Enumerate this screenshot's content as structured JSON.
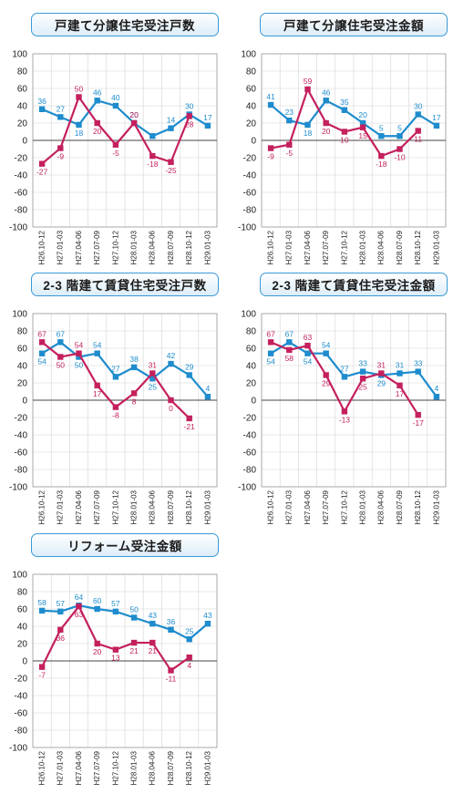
{
  "colors": {
    "series1": "#1e8ccd",
    "series2": "#c4205e",
    "grid": "#d4d4d4",
    "title_border": "#3a9ad6"
  },
  "chart_data": [
    {
      "type": "line",
      "title": "戸建て分譲住宅受注戸数",
      "categories": [
        "H26.10-12",
        "H27.01-03",
        "H27.04-06",
        "H27.07-09",
        "H27.10-12",
        "H28.01-03",
        "H28.04-06",
        "H28.07-09",
        "H28.10-12",
        "H29.01-03"
      ],
      "ylim": [
        -100,
        100
      ],
      "yticks": [
        100,
        80,
        60,
        40,
        20,
        0,
        -20,
        -40,
        -60,
        -80,
        -100
      ],
      "grid": true,
      "series": [
        {
          "values": [
            36,
            27,
            18,
            46,
            40,
            20,
            5,
            14,
            30,
            17
          ],
          "labels": [
            "36",
            "27",
            "18",
            "46",
            "40",
            "20",
            "",
            "14",
            "30",
            "17"
          ]
        },
        {
          "values": [
            -27,
            -9,
            50,
            20,
            -5,
            20,
            -18,
            -25,
            28,
            null
          ],
          "labels": [
            "-27",
            "-9",
            "50",
            "20",
            "-5",
            "20",
            "-18",
            "-25",
            "28",
            ""
          ]
        }
      ]
    },
    {
      "type": "line",
      "title": "戸建て分譲住宅受注金額",
      "categories": [
        "H26.10-12",
        "H27.01-03",
        "H27.04-06",
        "H27.07-09",
        "H27.10-12",
        "H28.01-03",
        "H28.04-06",
        "H28.07-09",
        "H28.10-12",
        "H29.01-03"
      ],
      "ylim": [
        -100,
        100
      ],
      "yticks": [
        100,
        80,
        60,
        40,
        20,
        0,
        -20,
        -40,
        -60,
        -80,
        -100
      ],
      "grid": true,
      "series": [
        {
          "values": [
            41,
            23,
            18,
            46,
            35,
            20,
            5,
            5,
            30,
            17
          ],
          "labels": [
            "41",
            "23",
            "18",
            "46",
            "35",
            "20",
            "5",
            "5",
            "30",
            "17"
          ]
        },
        {
          "values": [
            -9,
            -5,
            59,
            20,
            10,
            15,
            -18,
            -10,
            11,
            null
          ],
          "labels": [
            "-9",
            "-5",
            "59",
            "20",
            "10",
            "15",
            "-18",
            "-10",
            "11",
            ""
          ]
        }
      ]
    },
    {
      "type": "line",
      "title": "2-3 階建て賃貸住宅受注戸数",
      "categories": [
        "H26.10-12",
        "H27.01-03",
        "H27.04-06",
        "H27.07-09",
        "H27.10-12",
        "H28.01-03",
        "H28.04-06",
        "H28.07-09",
        "H28.10-12",
        "H29.01-03"
      ],
      "ylim": [
        -100,
        100
      ],
      "yticks": [
        100,
        80,
        60,
        40,
        20,
        0,
        -20,
        -40,
        -60,
        -80,
        -100
      ],
      "grid": true,
      "series": [
        {
          "values": [
            54,
            67,
            50,
            54,
            27,
            38,
            25,
            42,
            29,
            4
          ],
          "labels": [
            "54",
            "67",
            "50",
            "54",
            "27",
            "38",
            "25",
            "42",
            "29",
            "4"
          ]
        },
        {
          "values": [
            67,
            50,
            54,
            17,
            -8,
            8,
            31,
            0,
            -21,
            null
          ],
          "labels": [
            "67",
            "50",
            "54",
            "17",
            "-8",
            "8",
            "31",
            "0",
            "-21",
            ""
          ]
        }
      ]
    },
    {
      "type": "line",
      "title": "2-3 階建て賃貸住宅受注金額",
      "categories": [
        "H26.10-12",
        "H27.01-03",
        "H27.04-06",
        "H27.07-09",
        "H27.10-12",
        "H28.01-03",
        "H28.04-06",
        "H28.07-09",
        "H28.10-12",
        "H29.01-03"
      ],
      "ylim": [
        -100,
        100
      ],
      "yticks": [
        100,
        80,
        60,
        40,
        20,
        0,
        -20,
        -40,
        -60,
        -80,
        -100
      ],
      "grid": true,
      "series": [
        {
          "values": [
            54,
            67,
            54,
            54,
            27,
            33,
            29,
            31,
            33,
            4
          ],
          "labels": [
            "54",
            "67",
            "54",
            "54",
            "27",
            "33",
            "29",
            "31",
            "33",
            "4"
          ]
        },
        {
          "values": [
            67,
            58,
            63,
            29,
            -13,
            25,
            31,
            17,
            -17,
            null
          ],
          "labels": [
            "67",
            "58",
            "63",
            "29",
            "-13",
            "25",
            "31",
            "17",
            "-17",
            ""
          ]
        }
      ]
    },
    {
      "type": "line",
      "title": "リフォーム受注金額",
      "categories": [
        "H26.10-12",
        "H27.01-03",
        "H27.04-06",
        "H27.07-09",
        "H27.10-12",
        "H28.01-03",
        "H28.04-06",
        "H28.07-09",
        "H28.10-12",
        "H29.01-03"
      ],
      "ylim": [
        -100,
        100
      ],
      "yticks": [
        100,
        80,
        60,
        40,
        20,
        0,
        -20,
        -40,
        -60,
        -80,
        -100
      ],
      "grid": true,
      "series": [
        {
          "values": [
            58,
            57,
            64,
            60,
            57,
            50,
            43,
            36,
            25,
            43
          ],
          "labels": [
            "58",
            "57",
            "64",
            "60",
            "57",
            "50",
            "43",
            "36",
            "25",
            "43"
          ]
        },
        {
          "values": [
            -7,
            36,
            63,
            20,
            13,
            21,
            21,
            -11,
            4,
            null
          ],
          "labels": [
            "-7",
            "36",
            "63",
            "20",
            "13",
            "21",
            "21",
            "-11",
            "4",
            ""
          ]
        }
      ]
    }
  ]
}
